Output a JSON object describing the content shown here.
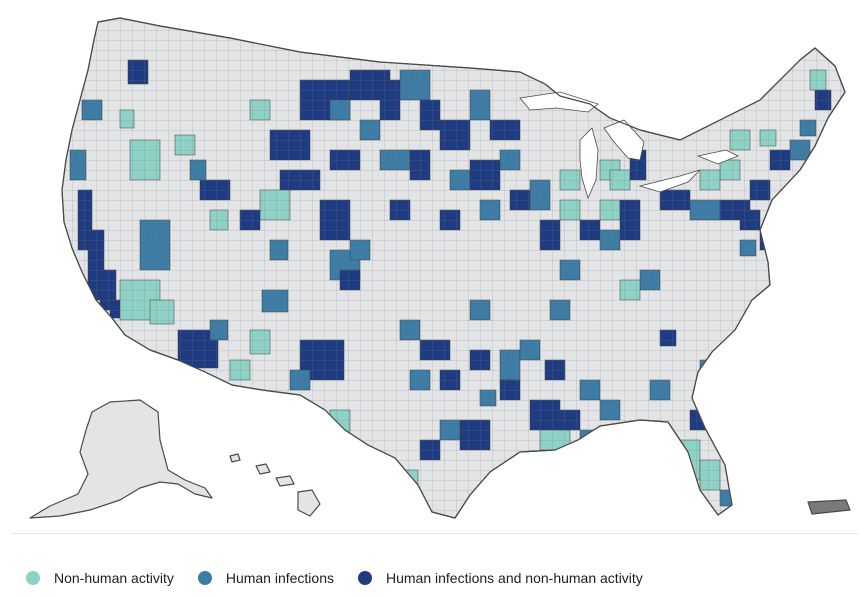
{
  "colors": {
    "background": "#ffffff",
    "no_activity": "#e3e4e6",
    "border": "#4a4a4a",
    "non_human_activity": "#8ed1c6",
    "human_infections": "#3d7ca5",
    "human_and_non_human": "#1f3c83"
  },
  "legend": {
    "items": [
      {
        "label": "Non-human activity",
        "color_key": "non_human_activity",
        "icon": "circle-swatch-icon"
      },
      {
        "label": "Human infections",
        "color_key": "human_infections",
        "icon": "circle-swatch-icon"
      },
      {
        "label": "Human infections and non-human activity",
        "color_key": "human_and_non_human",
        "icon": "circle-swatch-icon"
      }
    ]
  },
  "map": {
    "regions": [
      "contiguous-us",
      "alaska",
      "hawaii",
      "puerto-rico"
    ]
  }
}
